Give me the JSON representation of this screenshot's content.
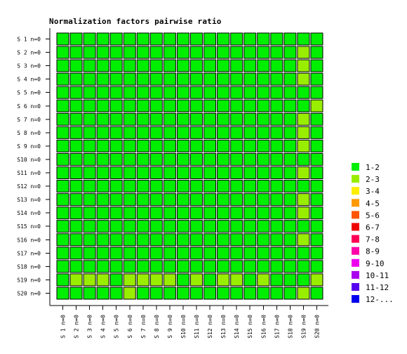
{
  "chart_data": {
    "type": "heatmap",
    "title": "Normalization factors pairwise ratio",
    "rows": [
      "S 1 n=0",
      "S 2 n=0",
      "S 3 n=0",
      "S 4 n=0",
      "S 5 n=0",
      "S 6 n=0",
      "S 7 n=0",
      "S 8 n=0",
      "S 9 n=0",
      "S10 n=0",
      "S11 n=0",
      "S12 n=0",
      "S13 n=0",
      "S14 n=0",
      "S15 n=0",
      "S16 n=0",
      "S17 n=0",
      "S18 n=0",
      "S19 n=0",
      "S20 n=0"
    ],
    "columns": [
      "S 1 n=0",
      "S 2 n=0",
      "S 3 n=0",
      "S 4 n=0",
      "S 5 n=0",
      "S 6 n=0",
      "S 7 n=0",
      "S 8 n=0",
      "S 9 n=0",
      "S10 n=0",
      "S11 n=0",
      "S12 n=0",
      "S13 n=0",
      "S14 n=0",
      "S15 n=0",
      "S16 n=0",
      "S17 n=0",
      "S18 n=0",
      "S19 n=0",
      "S20 n=0"
    ],
    "bins": [
      {
        "label": "1-2",
        "color": "#00ee00"
      },
      {
        "label": "2-3",
        "color": "#99ee00"
      },
      {
        "label": "3-4",
        "color": "#ffee00"
      },
      {
        "label": "4-5",
        "color": "#ff9900"
      },
      {
        "label": "5-6",
        "color": "#ff5500"
      },
      {
        "label": "6-7",
        "color": "#ee0000"
      },
      {
        "label": "7-8",
        "color": "#ff0055"
      },
      {
        "label": "8-9",
        "color": "#ff00aa"
      },
      {
        "label": "9-10",
        "color": "#ee00ee"
      },
      {
        "label": "10-11",
        "color": "#aa00ee"
      },
      {
        "label": "11-12",
        "color": "#5500ee"
      },
      {
        "label": "12-...",
        "color": "#0000ee"
      }
    ],
    "cell_bins": [
      [
        0,
        0,
        0,
        0,
        0,
        0,
        0,
        0,
        0,
        0,
        0,
        0,
        0,
        0,
        0,
        0,
        0,
        0,
        0,
        0
      ],
      [
        0,
        0,
        0,
        0,
        0,
        0,
        0,
        0,
        0,
        0,
        0,
        0,
        0,
        0,
        0,
        0,
        0,
        0,
        1,
        0
      ],
      [
        0,
        0,
        0,
        0,
        0,
        0,
        0,
        0,
        0,
        0,
        0,
        0,
        0,
        0,
        0,
        0,
        0,
        0,
        1,
        0
      ],
      [
        0,
        0,
        0,
        0,
        0,
        0,
        0,
        0,
        0,
        0,
        0,
        0,
        0,
        0,
        0,
        0,
        0,
        0,
        1,
        0
      ],
      [
        0,
        0,
        0,
        0,
        0,
        0,
        0,
        0,
        0,
        0,
        0,
        0,
        0,
        0,
        0,
        0,
        0,
        0,
        0,
        0
      ],
      [
        0,
        0,
        0,
        0,
        0,
        0,
        0,
        0,
        0,
        0,
        0,
        0,
        0,
        0,
        0,
        0,
        0,
        0,
        0,
        1
      ],
      [
        0,
        0,
        0,
        0,
        0,
        0,
        0,
        0,
        0,
        0,
        0,
        0,
        0,
        0,
        0,
        0,
        0,
        0,
        1,
        0
      ],
      [
        0,
        0,
        0,
        0,
        0,
        0,
        0,
        0,
        0,
        0,
        0,
        0,
        0,
        0,
        0,
        0,
        0,
        0,
        1,
        0
      ],
      [
        0,
        0,
        0,
        0,
        0,
        0,
        0,
        0,
        0,
        0,
        0,
        0,
        0,
        0,
        0,
        0,
        0,
        0,
        1,
        0
      ],
      [
        0,
        0,
        0,
        0,
        0,
        0,
        0,
        0,
        0,
        0,
        0,
        0,
        0,
        0,
        0,
        0,
        0,
        0,
        0,
        0
      ],
      [
        0,
        0,
        0,
        0,
        0,
        0,
        0,
        0,
        0,
        0,
        0,
        0,
        0,
        0,
        0,
        0,
        0,
        0,
        1,
        0
      ],
      [
        0,
        0,
        0,
        0,
        0,
        0,
        0,
        0,
        0,
        0,
        0,
        0,
        0,
        0,
        0,
        0,
        0,
        0,
        0,
        0
      ],
      [
        0,
        0,
        0,
        0,
        0,
        0,
        0,
        0,
        0,
        0,
        0,
        0,
        0,
        0,
        0,
        0,
        0,
        0,
        1,
        0
      ],
      [
        0,
        0,
        0,
        0,
        0,
        0,
        0,
        0,
        0,
        0,
        0,
        0,
        0,
        0,
        0,
        0,
        0,
        0,
        1,
        0
      ],
      [
        0,
        0,
        0,
        0,
        0,
        0,
        0,
        0,
        0,
        0,
        0,
        0,
        0,
        0,
        0,
        0,
        0,
        0,
        0,
        0
      ],
      [
        0,
        0,
        0,
        0,
        0,
        0,
        0,
        0,
        0,
        0,
        0,
        0,
        0,
        0,
        0,
        0,
        0,
        0,
        1,
        0
      ],
      [
        0,
        0,
        0,
        0,
        0,
        0,
        0,
        0,
        0,
        0,
        0,
        0,
        0,
        0,
        0,
        0,
        0,
        0,
        0,
        0
      ],
      [
        0,
        0,
        0,
        0,
        0,
        0,
        0,
        0,
        0,
        0,
        0,
        0,
        0,
        0,
        0,
        0,
        0,
        0,
        0,
        0
      ],
      [
        0,
        1,
        1,
        1,
        0,
        1,
        1,
        1,
        1,
        0,
        1,
        0,
        1,
        1,
        0,
        1,
        0,
        0,
        0,
        1
      ],
      [
        0,
        0,
        0,
        0,
        0,
        1,
        0,
        0,
        0,
        0,
        0,
        0,
        0,
        0,
        0,
        0,
        0,
        0,
        1,
        0
      ]
    ],
    "legend_position": "right",
    "grid": false
  }
}
